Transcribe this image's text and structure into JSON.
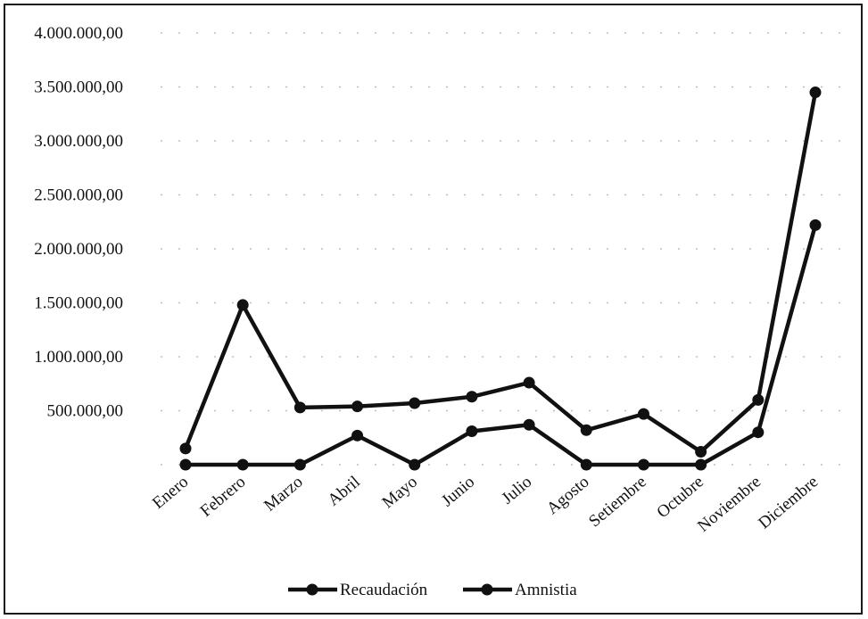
{
  "chart_data": {
    "type": "line",
    "categories": [
      "Enero",
      "Febrero",
      "Marzo",
      "Abril",
      "Mayo",
      "Junio",
      "Julio",
      "Agosto",
      "Setiembre",
      "Octubre",
      "Noviembre",
      "Diciembre"
    ],
    "series": [
      {
        "name": "Recaudación",
        "values": [
          150000,
          1480000,
          530000,
          540000,
          570000,
          630000,
          760000,
          320000,
          470000,
          120000,
          600000,
          3450000
        ]
      },
      {
        "name": "Amnistia",
        "values": [
          0,
          0,
          0,
          270000,
          0,
          310000,
          370000,
          0,
          0,
          0,
          300000,
          2220000
        ]
      }
    ],
    "y_ticks": [
      "",
      "500.000,00",
      "1.000.000,00",
      "1.500.000,00",
      "2.000.000,00",
      "2.500.000,00",
      "3.000.000,00",
      "3.500.000,00",
      "4.000.000,00"
    ],
    "ylim": [
      0,
      4000000
    ],
    "ystep": 500000,
    "legend": "bottom",
    "grid": true,
    "line_color": "#111111"
  }
}
